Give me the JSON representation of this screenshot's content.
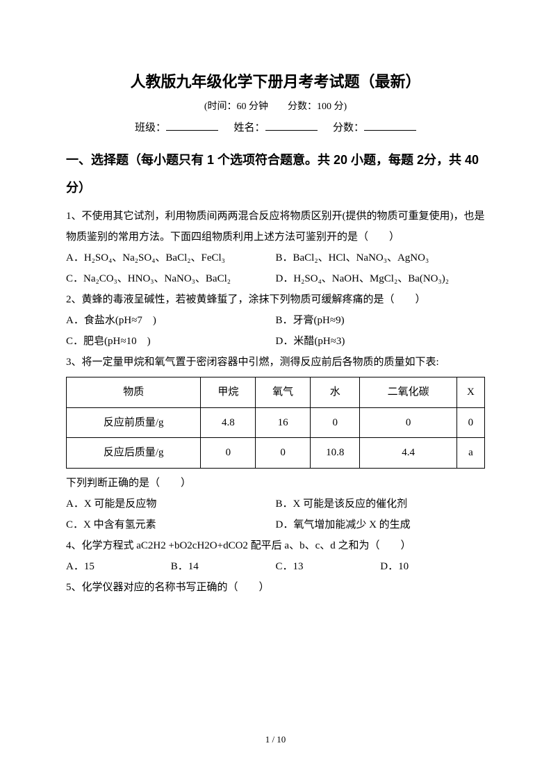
{
  "title": "人教版九年级化学下册月考考试题（最新）",
  "subtitle": "(时间：60 分钟　　分数：100 分)",
  "info": {
    "class_label": "班级：",
    "name_label": "姓名：",
    "score_label": "分数："
  },
  "section1": "一、选择题（每小题只有 1 个选项符合题意。共 20 小题，每题 2分，共 40 分）",
  "q1": {
    "text": "1、不使用其它试剂，利用物质间两两混合反应将物质区别开(提供的物质可重复使用)，也是物质鉴别的常用方法。下面四组物质利用上述方法可鉴别开的是（　　）",
    "A": "A．H₂SO₄、Na₂SO₄、BaCl₂、FeCl₃",
    "B": "B．BaCl₂、HCl、NaNO₃、AgNO₃",
    "C": "C．Na₂CO₃、HNO₃、NaNO₃、BaCl₂",
    "D": "D．H₂SO₄、NaOH、MgCl₂、Ba(NO₃)₂"
  },
  "q2": {
    "text": "2、黄蜂的毒液呈碱性，若被黄蜂蜇了，涂抹下列物质可缓解疼痛的是（　　）",
    "A": "A．食盐水(pH≈7　)",
    "B": "B．牙膏(pH≈9)",
    "C": "C．肥皂(pH≈10　)",
    "D": "D．米醋(pH≈3)"
  },
  "q3": {
    "text": "3、将一定量甲烷和氧气置于密闭容器中引燃，测得反应前后各物质的质量如下表:",
    "after": "下列判断正确的是（　　）",
    "A": "A．X 可能是反应物",
    "B": "B．X 可能是该反应的催化剂",
    "C": "C．X 中含有氢元素",
    "D": "D．氧气增加能减少 X 的生成"
  },
  "table": {
    "columns": [
      "物质",
      "甲烷",
      "氧气",
      "水",
      "二氧化碳",
      "X"
    ],
    "rows": [
      [
        "反应前质量/g",
        "4.8",
        "16",
        "0",
        "0",
        "0"
      ],
      [
        "反应后质量/g",
        "0",
        "0",
        "10.8",
        "4.4",
        "a"
      ]
    ]
  },
  "q4": {
    "text": "4、化学方程式 aC2H2 +bO2cH2O+dCO2 配平后 a、b、c、d 之和为（　　）",
    "A": "A．15",
    "B": "B．14",
    "C": "C．13",
    "D": "D．10"
  },
  "q5": {
    "text": "5、化学仪器对应的名称书写正确的（　　）"
  },
  "pagenum": "1 / 10"
}
